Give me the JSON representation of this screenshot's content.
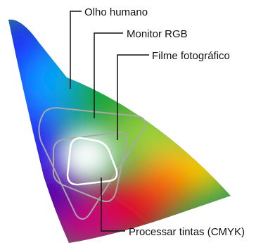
{
  "labels": {
    "human_eye": "Olho humano",
    "rgb_monitor": "Monitor RGB",
    "photo_film": "Filme fotográfico",
    "cmyk": "Processar tintas (CMYK)"
  },
  "colors": {
    "leader_line": "#111111",
    "gamut_outline_gray": "#a8a8a8",
    "gamut_outline_white": "#ffffff",
    "spectrum_blue": "#1a2cff",
    "spectrum_cyan": "#00a6ff",
    "spectrum_green": "#15a63a",
    "spectrum_yellow": "#ffd800",
    "spectrum_orange": "#ff6a00",
    "spectrum_red": "#e6001a",
    "spectrum_magenta": "#d0007a",
    "spectrum_purple": "#5a00a8"
  }
}
